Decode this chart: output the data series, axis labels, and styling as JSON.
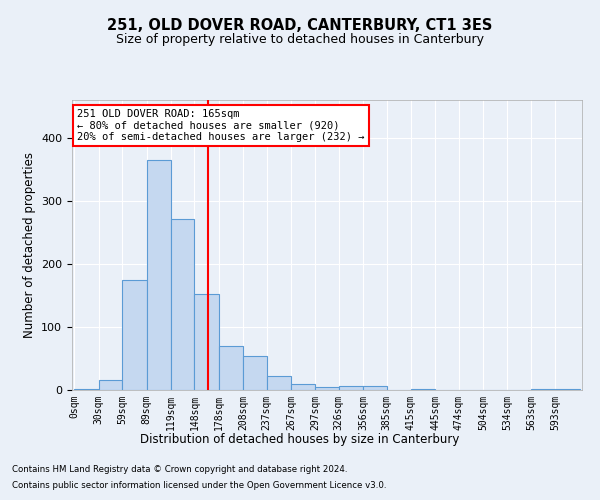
{
  "title": "251, OLD DOVER ROAD, CANTERBURY, CT1 3ES",
  "subtitle": "Size of property relative to detached houses in Canterbury",
  "xlabel": "Distribution of detached houses by size in Canterbury",
  "ylabel": "Number of detached properties",
  "bin_labels": [
    "0sqm",
    "30sqm",
    "59sqm",
    "89sqm",
    "119sqm",
    "148sqm",
    "178sqm",
    "208sqm",
    "237sqm",
    "267sqm",
    "297sqm",
    "326sqm",
    "356sqm",
    "385sqm",
    "415sqm",
    "445sqm",
    "474sqm",
    "504sqm",
    "534sqm",
    "563sqm",
    "593sqm"
  ],
  "bar_heights": [
    2,
    16,
    175,
    365,
    272,
    152,
    70,
    54,
    22,
    9,
    5,
    6,
    6,
    0,
    1,
    0,
    0,
    0,
    0,
    1,
    1
  ],
  "bin_edges": [
    0,
    30,
    59,
    89,
    119,
    148,
    178,
    208,
    237,
    267,
    297,
    326,
    356,
    385,
    415,
    445,
    474,
    504,
    534,
    563,
    593,
    623
  ],
  "bar_color": "#c5d8f0",
  "bar_edge_color": "#5b9bd5",
  "bar_linewidth": 0.8,
  "red_line_x": 165,
  "annotation_text_line1": "251 OLD DOVER ROAD: 165sqm",
  "annotation_text_line2": "← 80% of detached houses are smaller (920)",
  "annotation_text_line3": "20% of semi-detached houses are larger (232) →",
  "annotation_box_color": "white",
  "annotation_box_edgecolor": "red",
  "ylim": [
    0,
    460
  ],
  "background_color": "#eaf0f8",
  "grid_color": "white",
  "footer_line1": "Contains HM Land Registry data © Crown copyright and database right 2024.",
  "footer_line2": "Contains public sector information licensed under the Open Government Licence v3.0."
}
